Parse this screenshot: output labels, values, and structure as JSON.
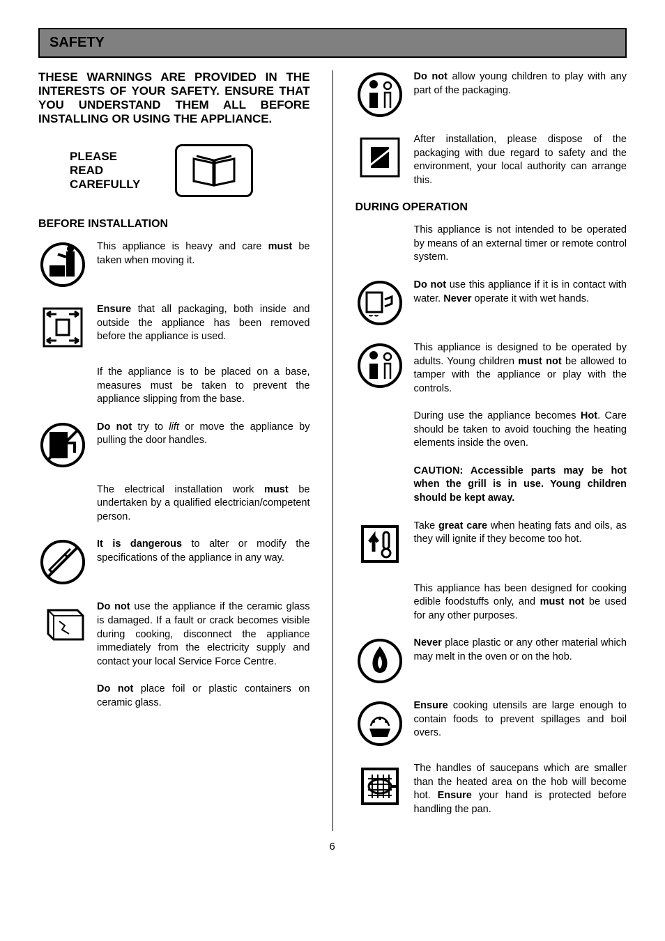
{
  "banner": "SAFETY",
  "intro": "THESE WARNINGS ARE PROVIDED IN THE INTERESTS OF YOUR SAFETY. ENSURE THAT YOU UNDERSTAND THEM ALL BEFORE INSTALLING OR USING THE APPLIANCE.",
  "read_label": "PLEASE\nREAD\nCAREFULLY",
  "before_head": "BEFORE INSTALLATION",
  "during_head": "DURING OPERATION",
  "page_num": "6",
  "left": {
    "heavy": "This appliance is heavy and care <b>must</b> be taken when moving it.",
    "packaging": "<b>Ensure</b> that all packaging, both inside and outside the appliance has been removed before the appliance is used.",
    "base": "If the appliance is to be placed on a base, measures must be taken to prevent the appliance slipping from the base.",
    "lift": "<b>Do not</b> try to <i>lift</i> or move the appliance by pulling the door handles.",
    "elec": "The electrical installation work <b>must</b> be undertaken by a qualified electrician/competent person.",
    "modify": "<b>It is dangerous</b> to alter or modify the specifications of the appliance in any way.",
    "ceramic": "<b>Do not</b> use the appliance if the ceramic glass is damaged. If a fault or crack becomes visible during cooking, disconnect the appliance immediately from the electricity supply and contact your local Service Force Centre.",
    "foil": "<b>Do not</b> place foil or plastic containers on ceramic glass."
  },
  "right": {
    "child_pack": "<b>Do not</b> allow young children to play with any part of the packaging.",
    "dispose": "After installation, please dispose of the packaging with due regard to safety and the environment, your local authority can arrange this.",
    "timer": "This appliance is not intended to be operated by means of an external timer or remote control system.",
    "water": "<b>Do not</b> use this appliance if it is in contact with water.  <b>Never</b> operate it with wet hands.",
    "adults": "This appliance is designed to be operated by adults.  Young children <b>must not</b> be allowed to tamper with the appliance or play with the controls.",
    "hot": "During use the appliance becomes <b>Hot</b>.  Care should be taken to avoid touching the heating elements inside the oven.",
    "caution": "<b>CAUTION: Accessible parts may be hot when the grill is in use. Young children should be kept away.</b>",
    "fats": "Take <b>great care</b> when heating fats and oils, as they will ignite if they become too hot.",
    "edible": "This appliance has been designed for cooking edible foodstuffs only, and <b>must not</b> be used for any other purposes.",
    "plastic": "<b>Never</b> place plastic or any other material which may melt in the oven or on the hob.",
    "utensils": "<b>Ensure</b> cooking utensils are large enough to contain foods to prevent spillages and boil overs.",
    "handles": "The handles of saucepans which are smaller than the heated area on the hob will become hot.  <b>Ensure</b> your hand is protected before handling the pan."
  }
}
